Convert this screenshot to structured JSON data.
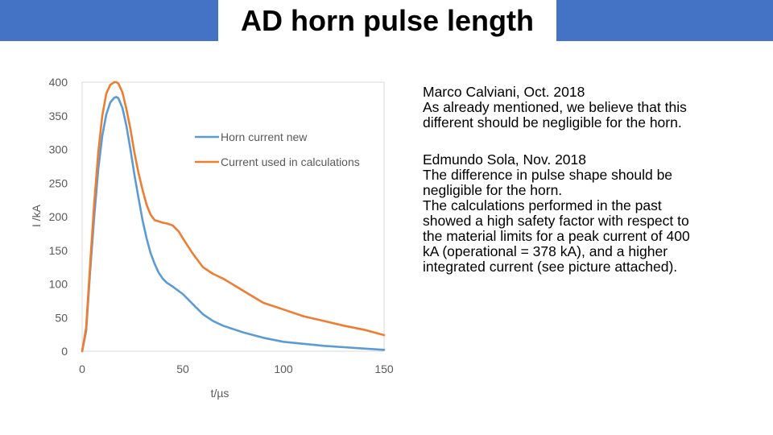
{
  "slide": {
    "title": "AD horn pulse length"
  },
  "colors": {
    "title_bar": "#4472c4",
    "series_new": "#5b9bd5",
    "series_calc": "#ed7d31"
  },
  "notes": [
    {
      "author": "Marco Calviani, Oct. 2018",
      "paragraphs": [
        "As already mentioned, we believe that this different should be negligible for the horn."
      ]
    },
    {
      "author": "Edmundo Sola, Nov. 2018",
      "paragraphs": [
        "The difference in pulse shape should be negligible for the horn.",
        "The calculations performed in the past showed a high safety factor with respect to the material limits for a peak current of 400 kA (operational = 378 kA), and a higher integrated current (see picture attached)."
      ]
    }
  ],
  "chart_data": {
    "type": "line",
    "xlabel": "t/µs",
    "ylabel": "I /kA",
    "xlim": [
      0,
      150
    ],
    "ylim": [
      0,
      400
    ],
    "xticks": [
      0,
      50,
      100,
      150
    ],
    "yticks": [
      0,
      50,
      100,
      150,
      200,
      250,
      300,
      350,
      400
    ],
    "grid": false,
    "legend_position": "top-right",
    "series": [
      {
        "name": "Horn current new",
        "color": "#5b9bd5",
        "x": [
          0,
          2,
          4,
          6,
          8,
          10,
          12,
          14,
          16,
          17,
          18,
          20,
          22,
          24,
          26,
          28,
          30,
          32,
          34,
          36,
          38,
          40,
          42,
          45,
          50,
          55,
          60,
          65,
          70,
          80,
          90,
          100,
          110,
          120,
          130,
          140,
          150
        ],
        "y": [
          0,
          30,
          120,
          200,
          270,
          320,
          352,
          370,
          377,
          378,
          376,
          362,
          335,
          300,
          262,
          228,
          195,
          168,
          146,
          130,
          117,
          108,
          102,
          96,
          85,
          70,
          55,
          45,
          38,
          28,
          20,
          14,
          11,
          8,
          6,
          4,
          2
        ]
      },
      {
        "name": "Current used in calculations",
        "color": "#ed7d31",
        "x": [
          0,
          2,
          4,
          6,
          8,
          10,
          12,
          14,
          16,
          17,
          18,
          20,
          22,
          24,
          26,
          28,
          30,
          32,
          34,
          36,
          38,
          40,
          42,
          45,
          48,
          50,
          55,
          60,
          65,
          70,
          80,
          90,
          100,
          110,
          120,
          130,
          140,
          150
        ],
        "y": [
          0,
          35,
          130,
          220,
          295,
          350,
          383,
          396,
          400,
          400,
          398,
          385,
          360,
          330,
          295,
          265,
          240,
          218,
          203,
          195,
          193,
          191,
          190,
          187,
          178,
          168,
          145,
          125,
          115,
          108,
          90,
          72,
          62,
          52,
          45,
          38,
          32,
          24
        ]
      }
    ]
  }
}
